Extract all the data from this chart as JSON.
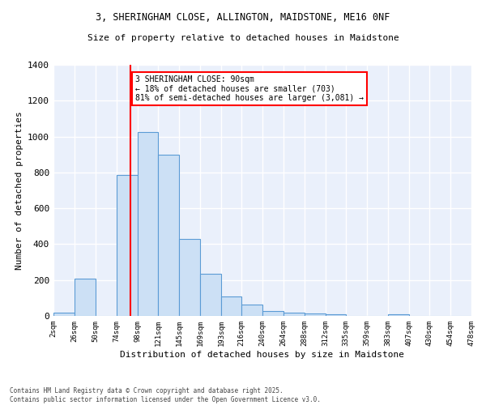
{
  "title_line1": "3, SHERINGHAM CLOSE, ALLINGTON, MAIDSTONE, ME16 0NF",
  "title_line2": "Size of property relative to detached houses in Maidstone",
  "xlabel": "Distribution of detached houses by size in Maidstone",
  "ylabel": "Number of detached properties",
  "bar_edges": [
    2,
    26,
    50,
    74,
    98,
    121,
    145,
    169,
    193,
    216,
    240,
    264,
    288,
    312,
    335,
    359,
    383,
    407,
    430,
    454,
    478
  ],
  "bar_heights": [
    20,
    210,
    0,
    785,
    1025,
    900,
    430,
    235,
    110,
    65,
    25,
    20,
    15,
    10,
    0,
    0,
    10,
    0,
    0,
    0
  ],
  "bar_color": "#cce0f5",
  "bar_edge_color": "#5b9bd5",
  "red_line_x": 90,
  "annotation_text": "3 SHERINGHAM CLOSE: 90sqm\n← 18% of detached houses are smaller (703)\n81% of semi-detached houses are larger (3,081) →",
  "annotation_box_facecolor": "white",
  "annotation_box_edgecolor": "red",
  "ylim": [
    0,
    1400
  ],
  "yticks": [
    0,
    200,
    400,
    600,
    800,
    1000,
    1200,
    1400
  ],
  "xtick_labels": [
    "2sqm",
    "26sqm",
    "50sqm",
    "74sqm",
    "98sqm",
    "121sqm",
    "145sqm",
    "169sqm",
    "193sqm",
    "216sqm",
    "240sqm",
    "264sqm",
    "288sqm",
    "312sqm",
    "335sqm",
    "359sqm",
    "383sqm",
    "407sqm",
    "430sqm",
    "454sqm",
    "478sqm"
  ],
  "bg_color": "#eaf0fb",
  "grid_color": "white",
  "footer_line1": "Contains HM Land Registry data © Crown copyright and database right 2025.",
  "footer_line2": "Contains public sector information licensed under the Open Government Licence v3.0."
}
